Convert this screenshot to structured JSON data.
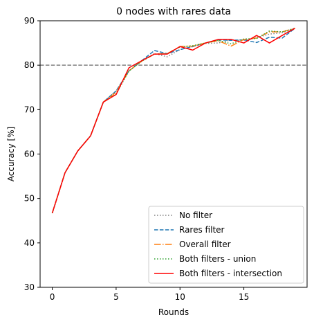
{
  "chart_data": {
    "type": "line",
    "title": "0 nodes with rares data",
    "xlabel": "Rounds",
    "ylabel": "Accuracy [%]",
    "xlim": [
      -0.95,
      19.95
    ],
    "ylim": [
      30,
      90
    ],
    "xticks": [
      0,
      5,
      10,
      15
    ],
    "yticks": [
      30,
      40,
      50,
      60,
      70,
      80,
      90
    ],
    "grid": false,
    "legend_position": "lower-right",
    "reference_line": {
      "y": 80,
      "color": "#808080",
      "style": "dashed"
    },
    "x": [
      0,
      1,
      2,
      3,
      4,
      5,
      6,
      7,
      8,
      9,
      10,
      11,
      12,
      13,
      14,
      15,
      16,
      17,
      18,
      19
    ],
    "series": [
      {
        "name": "No filter",
        "color": "#7f7f7f",
        "style": "dotted",
        "values": [
          46.7,
          55.8,
          60.7,
          64.1,
          71.7,
          74.2,
          78.7,
          81.0,
          82.6,
          81.9,
          83.5,
          84.2,
          84.9,
          85.0,
          85.7,
          85.6,
          86.2,
          87.0,
          87.3,
          88.3
        ]
      },
      {
        "name": "Rares filter",
        "color": "#1f77b4",
        "style": "dashed",
        "values": [
          46.7,
          55.8,
          60.7,
          64.1,
          71.7,
          74.2,
          78.7,
          81.0,
          83.3,
          82.6,
          83.5,
          84.2,
          85.0,
          85.7,
          85.6,
          85.7,
          85.1,
          86.3,
          86.1,
          88.3
        ]
      },
      {
        "name": "Overall filter",
        "color": "#ff7f0e",
        "style": "dashdot",
        "values": [
          46.7,
          55.8,
          60.7,
          64.1,
          71.7,
          73.9,
          78.7,
          80.9,
          82.5,
          82.6,
          84.2,
          84.3,
          85.0,
          85.5,
          84.3,
          85.8,
          86.1,
          87.5,
          87.5,
          88.3
        ]
      },
      {
        "name": "Both filters - union",
        "color": "#2ca02c",
        "style": "dotted",
        "values": [
          46.7,
          55.8,
          60.7,
          64.1,
          71.7,
          73.5,
          78.7,
          80.9,
          82.5,
          82.6,
          84.1,
          84.4,
          85.0,
          85.6,
          84.8,
          85.9,
          86.0,
          87.7,
          87.5,
          88.3
        ]
      },
      {
        "name": "Both filters - intersection",
        "color": "#ff0000",
        "style": "solid",
        "values": [
          46.7,
          55.8,
          60.7,
          64.1,
          71.7,
          73.4,
          79.4,
          81.0,
          82.5,
          82.5,
          84.2,
          83.4,
          85.0,
          85.8,
          85.8,
          85.0,
          86.7,
          85.0,
          86.7,
          88.3
        ]
      }
    ]
  }
}
